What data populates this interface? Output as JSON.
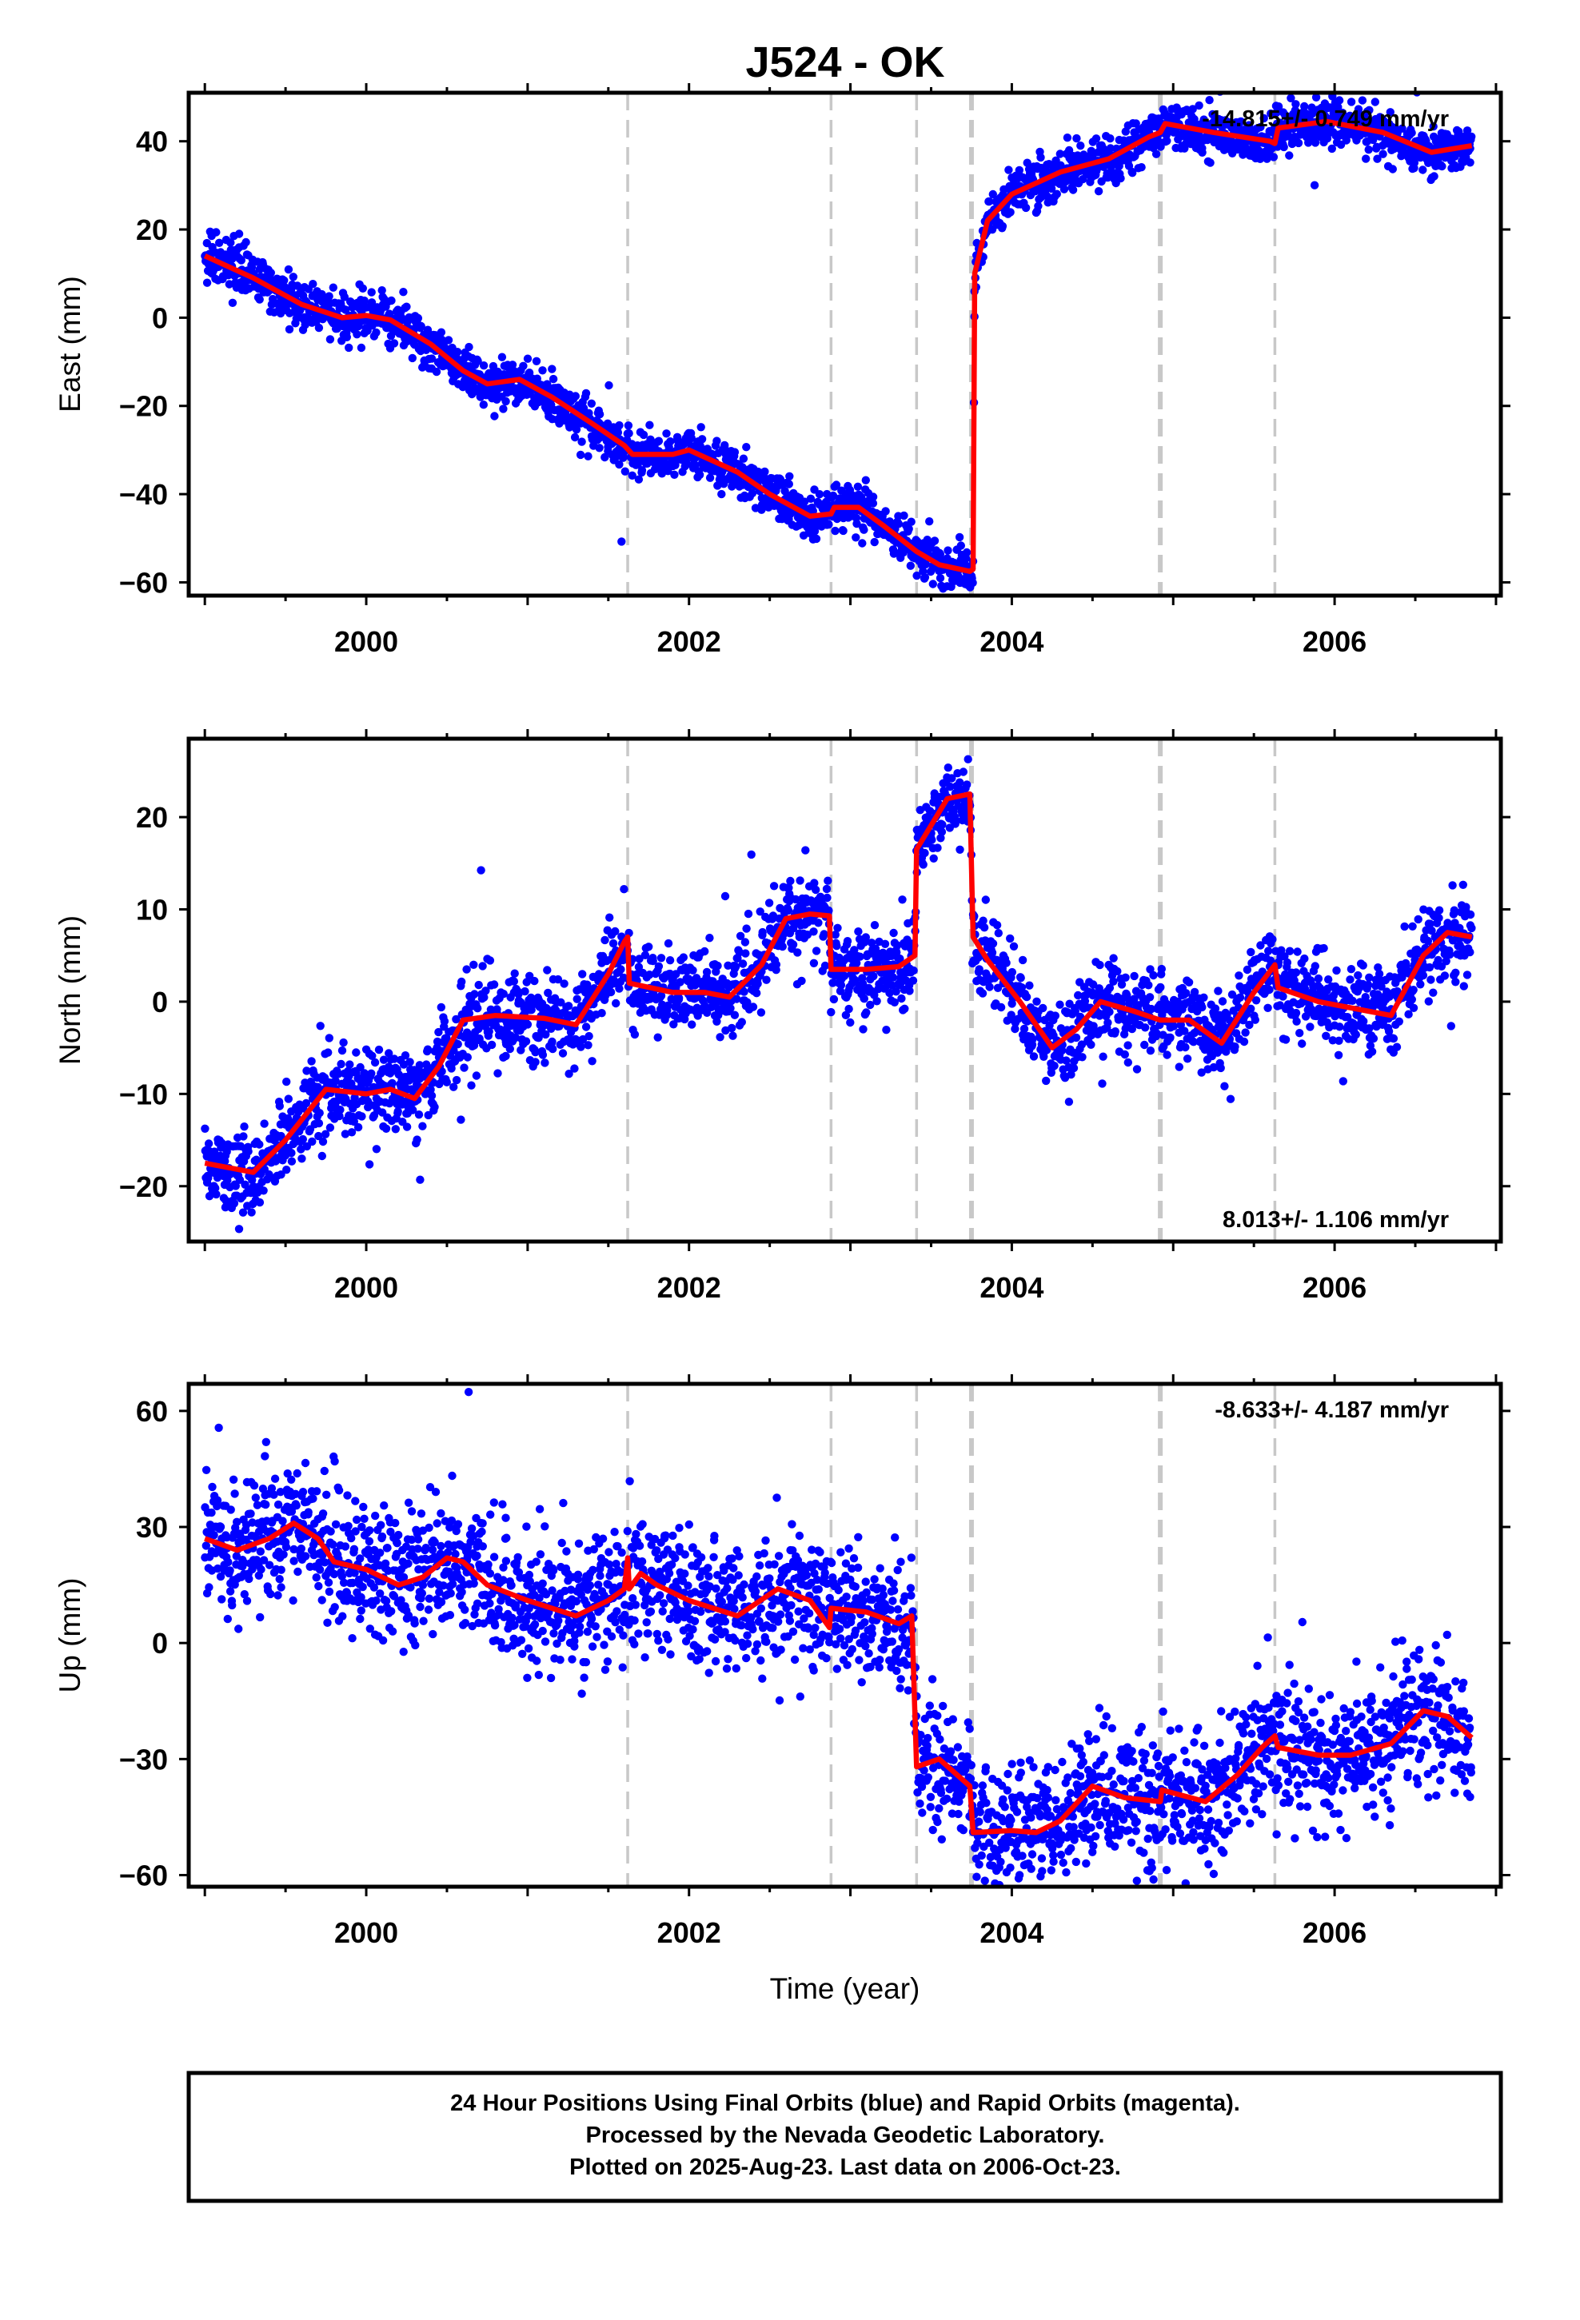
{
  "figure": {
    "title": "J524 - OK"
  },
  "chart_data": [
    {
      "type": "scatter",
      "id": "east",
      "ylabel": "East (mm)",
      "xlabel": "",
      "xlim": [
        1998.9,
        2007.03
      ],
      "ylim": [
        -63,
        51
      ],
      "x_ticks": [
        2000,
        2002,
        2004,
        2006
      ],
      "y_ticks": [
        -60,
        -40,
        -20,
        0,
        20,
        40
      ],
      "rate_text": "-14.815+/- 0.749 mm/yr",
      "rate_position": "top-right",
      "scatter_color": "#0000ff",
      "model_color": "#ff0000",
      "event_lines": [
        2001.62,
        2002.88,
        2003.41,
        2003.75,
        2004.92,
        2005.63
      ],
      "scatter_noise": 2.6,
      "model_curve": [
        [
          1999.0,
          14
        ],
        [
          1999.3,
          9
        ],
        [
          1999.6,
          3
        ],
        [
          1999.85,
          0
        ],
        [
          2000.0,
          0.5
        ],
        [
          2000.15,
          -0.5
        ],
        [
          2000.4,
          -6
        ],
        [
          2000.6,
          -12
        ],
        [
          2000.75,
          -15
        ],
        [
          2000.95,
          -14
        ],
        [
          2001.15,
          -18
        ],
        [
          2001.4,
          -24
        ],
        [
          2001.6,
          -29
        ],
        [
          2001.65,
          -31
        ],
        [
          2001.9,
          -31
        ],
        [
          2002.0,
          -30
        ],
        [
          2002.3,
          -35
        ],
        [
          2002.5,
          -40
        ],
        [
          2002.75,
          -45
        ],
        [
          2002.88,
          -44.5
        ],
        [
          2002.9,
          -43
        ],
        [
          2003.05,
          -43
        ],
        [
          2003.2,
          -47
        ],
        [
          2003.41,
          -53
        ],
        [
          2003.55,
          -56
        ],
        [
          2003.74,
          -57.5
        ],
        [
          2003.76,
          -57
        ],
        [
          2003.77,
          10
        ],
        [
          2003.85,
          22
        ],
        [
          2004.0,
          28
        ],
        [
          2004.3,
          33
        ],
        [
          2004.6,
          36
        ],
        [
          2004.85,
          41
        ],
        [
          2004.92,
          42
        ],
        [
          2004.95,
          44
        ],
        [
          2005.25,
          42
        ],
        [
          2005.6,
          40
        ],
        [
          2005.63,
          39.5
        ],
        [
          2005.65,
          43
        ],
        [
          2005.95,
          44.5
        ],
        [
          2006.3,
          42
        ],
        [
          2006.6,
          37.5
        ],
        [
          2006.85,
          39
        ]
      ]
    },
    {
      "type": "scatter",
      "id": "north",
      "ylabel": "North (mm)",
      "xlabel": "",
      "xlim": [
        1998.9,
        2007.03
      ],
      "ylim": [
        -26,
        28.5
      ],
      "x_ticks": [
        2000,
        2002,
        2004,
        2006
      ],
      "y_ticks": [
        -20,
        -10,
        0,
        10,
        20
      ],
      "rate_text": "8.013+/- 1.106 mm/yr",
      "rate_position": "bottom-right",
      "scatter_color": "#0000ff",
      "model_color": "#ff0000",
      "event_lines": [
        2001.62,
        2002.88,
        2003.41,
        2003.75,
        2004.92,
        2005.63
      ],
      "scatter_noise": 2.3,
      "model_curve": [
        [
          1999.0,
          -17.5
        ],
        [
          1999.3,
          -18.5
        ],
        [
          1999.5,
          -15
        ],
        [
          1999.75,
          -9.5
        ],
        [
          2000.0,
          -10
        ],
        [
          2000.15,
          -9.5
        ],
        [
          2000.3,
          -10.5
        ],
        [
          2000.45,
          -7
        ],
        [
          2000.6,
          -2
        ],
        [
          2000.8,
          -1.5
        ],
        [
          2001.1,
          -1.8
        ],
        [
          2001.3,
          -2.5
        ],
        [
          2001.5,
          3
        ],
        [
          2001.6,
          6.5
        ],
        [
          2001.62,
          7
        ],
        [
          2001.63,
          2
        ],
        [
          2001.9,
          1
        ],
        [
          2002.1,
          1
        ],
        [
          2002.25,
          0.5
        ],
        [
          2002.45,
          4
        ],
        [
          2002.6,
          9
        ],
        [
          2002.75,
          9.5
        ],
        [
          2002.87,
          9.3
        ],
        [
          2002.88,
          3.5
        ],
        [
          2003.1,
          3.5
        ],
        [
          2003.3,
          3.8
        ],
        [
          2003.4,
          5
        ],
        [
          2003.41,
          16.5
        ],
        [
          2003.6,
          22
        ],
        [
          2003.74,
          22.5
        ],
        [
          2003.76,
          7
        ],
        [
          2003.85,
          4.5
        ],
        [
          2004.05,
          0
        ],
        [
          2004.25,
          -5
        ],
        [
          2004.4,
          -3
        ],
        [
          2004.55,
          0
        ],
        [
          2004.75,
          -1
        ],
        [
          2004.92,
          -2
        ],
        [
          2005.1,
          -2
        ],
        [
          2005.3,
          -4.5
        ],
        [
          2005.5,
          1
        ],
        [
          2005.63,
          4
        ],
        [
          2005.65,
          1.5
        ],
        [
          2005.9,
          0
        ],
        [
          2006.2,
          -1
        ],
        [
          2006.35,
          -1.5
        ],
        [
          2006.55,
          5
        ],
        [
          2006.7,
          7.5
        ],
        [
          2006.85,
          7
        ]
      ]
    },
    {
      "type": "scatter",
      "id": "up",
      "ylabel": "Up (mm)",
      "xlabel": "Time (year)",
      "xlim": [
        1998.9,
        2007.03
      ],
      "ylim": [
        -63,
        67
      ],
      "x_ticks": [
        2000,
        2002,
        2004,
        2006
      ],
      "y_ticks": [
        -60,
        -30,
        0,
        30,
        60
      ],
      "rate_text": "-8.633+/- 4.187 mm/yr",
      "rate_position": "top-right",
      "scatter_color": "#0000ff",
      "model_color": "#ff0000",
      "event_lines": [
        2001.62,
        2002.88,
        2003.41,
        2003.75,
        2004.92,
        2005.63
      ],
      "scatter_noise": 8.5,
      "model_curve": [
        [
          1999.0,
          27
        ],
        [
          1999.2,
          24
        ],
        [
          1999.4,
          27
        ],
        [
          1999.55,
          31
        ],
        [
          1999.7,
          27
        ],
        [
          1999.8,
          21
        ],
        [
          2000.0,
          19
        ],
        [
          2000.2,
          15
        ],
        [
          2000.35,
          17
        ],
        [
          2000.5,
          22
        ],
        [
          2000.6,
          21
        ],
        [
          2000.75,
          15
        ],
        [
          2001.0,
          11
        ],
        [
          2001.3,
          7
        ],
        [
          2001.5,
          11
        ],
        [
          2001.6,
          14
        ],
        [
          2001.62,
          22
        ],
        [
          2001.63,
          14
        ],
        [
          2001.7,
          18
        ],
        [
          2001.8,
          15
        ],
        [
          2002.0,
          11
        ],
        [
          2002.3,
          7
        ],
        [
          2002.55,
          14
        ],
        [
          2002.75,
          11
        ],
        [
          2002.87,
          4
        ],
        [
          2002.88,
          9
        ],
        [
          2003.1,
          8
        ],
        [
          2003.3,
          5
        ],
        [
          2003.38,
          7
        ],
        [
          2003.41,
          -32
        ],
        [
          2003.55,
          -30
        ],
        [
          2003.74,
          -37
        ],
        [
          2003.76,
          -49
        ],
        [
          2004.0,
          -48.5
        ],
        [
          2004.15,
          -49
        ],
        [
          2004.3,
          -46
        ],
        [
          2004.5,
          -37
        ],
        [
          2004.7,
          -40
        ],
        [
          2004.92,
          -41
        ],
        [
          2004.93,
          -38
        ],
        [
          2005.2,
          -41
        ],
        [
          2005.4,
          -34
        ],
        [
          2005.55,
          -27
        ],
        [
          2005.63,
          -24
        ],
        [
          2005.65,
          -27
        ],
        [
          2005.9,
          -29
        ],
        [
          2006.1,
          -29
        ],
        [
          2006.35,
          -26
        ],
        [
          2006.55,
          -17.5
        ],
        [
          2006.7,
          -19
        ],
        [
          2006.85,
          -24.5
        ]
      ]
    }
  ],
  "footer": {
    "line1": "24 Hour Positions Using Final Orbits (blue) and Rapid Orbits (magenta).",
    "line2": "Processed by the Nevada Geodetic Laboratory.",
    "line3": "Plotted on 2025-Aug-23. Last data on 2006-Oct-23."
  }
}
